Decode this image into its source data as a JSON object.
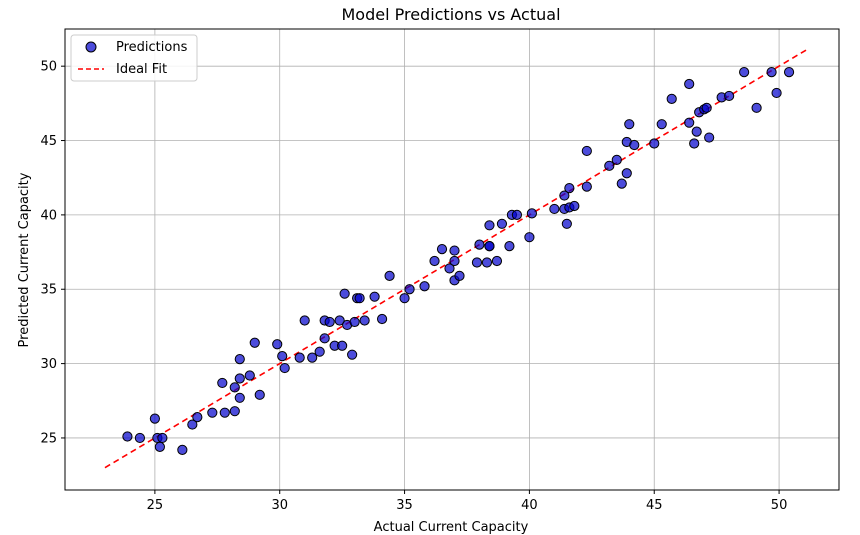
{
  "chart_data": {
    "type": "scatter",
    "title": "Model Predictions vs Actual",
    "xlabel": "Actual Current Capacity",
    "ylabel": "Predicted Current Capacity",
    "xlim": [
      21.4,
      52.4
    ],
    "ylim": [
      21.5,
      52.5
    ],
    "xticks": [
      25,
      30,
      35,
      40,
      45,
      50
    ],
    "yticks": [
      25,
      30,
      35,
      40,
      45,
      50
    ],
    "grid": true,
    "legend_position": "top-left",
    "series": [
      {
        "name": "Predictions",
        "kind": "scatter",
        "color": "#0000cc",
        "edge_color": "#000000",
        "points": [
          [
            23.9,
            25.1
          ],
          [
            24.4,
            25.0
          ],
          [
            25.0,
            26.3
          ],
          [
            25.1,
            25.0
          ],
          [
            25.2,
            24.4
          ],
          [
            25.3,
            25.0
          ],
          [
            26.1,
            24.2
          ],
          [
            26.5,
            25.9
          ],
          [
            26.7,
            26.4
          ],
          [
            27.3,
            26.7
          ],
          [
            27.7,
            28.7
          ],
          [
            27.8,
            26.7
          ],
          [
            28.2,
            26.8
          ],
          [
            28.2,
            28.4
          ],
          [
            28.4,
            29.0
          ],
          [
            28.4,
            27.7
          ],
          [
            28.4,
            30.3
          ],
          [
            28.8,
            29.2
          ],
          [
            29.0,
            31.4
          ],
          [
            29.2,
            27.9
          ],
          [
            29.9,
            31.3
          ],
          [
            30.1,
            30.5
          ],
          [
            30.2,
            29.7
          ],
          [
            30.8,
            30.4
          ],
          [
            31.0,
            32.9
          ],
          [
            31.3,
            30.4
          ],
          [
            31.6,
            30.8
          ],
          [
            31.8,
            31.7
          ],
          [
            31.8,
            32.9
          ],
          [
            32.0,
            32.8
          ],
          [
            32.2,
            31.2
          ],
          [
            32.4,
            32.9
          ],
          [
            32.5,
            31.2
          ],
          [
            32.6,
            34.7
          ],
          [
            32.7,
            32.6
          ],
          [
            32.9,
            30.6
          ],
          [
            33.0,
            32.8
          ],
          [
            33.1,
            34.4
          ],
          [
            33.2,
            34.4
          ],
          [
            33.4,
            32.9
          ],
          [
            33.8,
            34.5
          ],
          [
            34.1,
            33.0
          ],
          [
            34.4,
            35.9
          ],
          [
            35.0,
            34.4
          ],
          [
            35.2,
            35.0
          ],
          [
            35.8,
            35.2
          ],
          [
            36.2,
            36.9
          ],
          [
            36.5,
            37.7
          ],
          [
            36.8,
            36.4
          ],
          [
            37.0,
            36.9
          ],
          [
            37.0,
            37.6
          ],
          [
            37.0,
            35.6
          ],
          [
            37.2,
            35.9
          ],
          [
            37.9,
            36.8
          ],
          [
            38.0,
            38.0
          ],
          [
            38.3,
            36.8
          ],
          [
            38.4,
            39.3
          ],
          [
            38.4,
            37.9
          ],
          [
            38.4,
            37.9
          ],
          [
            38.7,
            36.9
          ],
          [
            38.9,
            39.4
          ],
          [
            39.2,
            37.9
          ],
          [
            39.3,
            40.0
          ],
          [
            39.5,
            40.0
          ],
          [
            40.0,
            38.5
          ],
          [
            40.1,
            40.1
          ],
          [
            41.0,
            40.4
          ],
          [
            41.4,
            41.3
          ],
          [
            41.4,
            40.4
          ],
          [
            41.5,
            39.4
          ],
          [
            41.6,
            41.8
          ],
          [
            41.6,
            40.5
          ],
          [
            41.8,
            40.6
          ],
          [
            42.3,
            44.3
          ],
          [
            42.3,
            41.9
          ],
          [
            43.2,
            43.3
          ],
          [
            43.5,
            43.7
          ],
          [
            43.7,
            42.1
          ],
          [
            43.9,
            44.9
          ],
          [
            43.9,
            42.8
          ],
          [
            44.0,
            46.1
          ],
          [
            44.2,
            44.7
          ],
          [
            45.0,
            44.8
          ],
          [
            45.3,
            46.1
          ],
          [
            45.7,
            47.8
          ],
          [
            46.4,
            48.8
          ],
          [
            46.4,
            46.2
          ],
          [
            46.6,
            44.8
          ],
          [
            46.7,
            45.6
          ],
          [
            46.8,
            46.9
          ],
          [
            47.0,
            47.1
          ],
          [
            47.1,
            47.2
          ],
          [
            47.2,
            45.2
          ],
          [
            47.7,
            47.9
          ],
          [
            48.0,
            48.0
          ],
          [
            48.6,
            49.6
          ],
          [
            49.1,
            47.2
          ],
          [
            49.7,
            49.6
          ],
          [
            49.9,
            48.2
          ],
          [
            50.4,
            49.6
          ]
        ]
      },
      {
        "name": "Ideal Fit",
        "kind": "line",
        "color": "#ff0000",
        "style": "dashed",
        "points": [
          [
            23.0,
            23.0
          ],
          [
            51.1,
            51.1
          ]
        ]
      }
    ]
  }
}
